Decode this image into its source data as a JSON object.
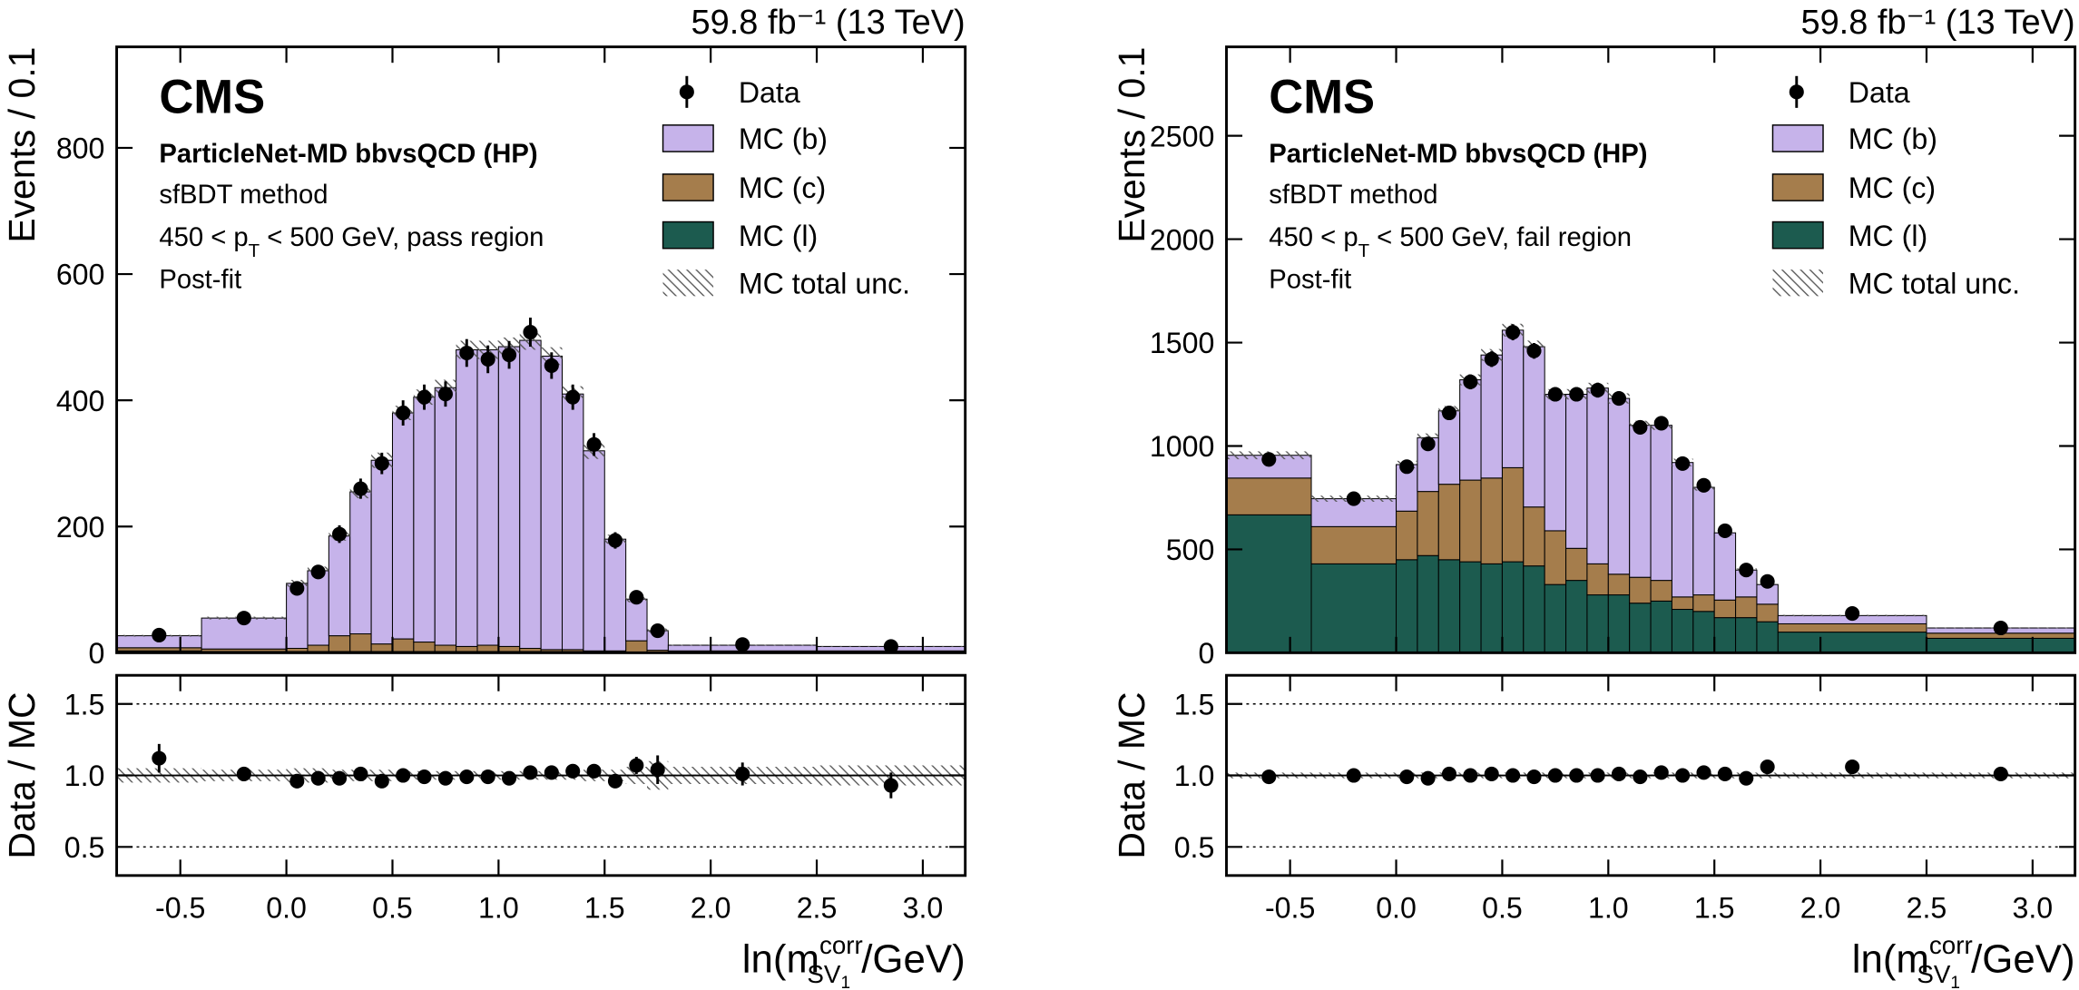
{
  "chart_data": [
    {
      "type": "stacked_histogram",
      "lumi": "59.8 fb⁻¹ (13 TeV)",
      "experiment": "CMS",
      "tagger": "ParticleNet-MD bbvsQCD (HP)",
      "method": "sfBDT method",
      "region": [
        "450 < p",
        "T",
        " < 500 GeV, pass region"
      ],
      "fit": "Post-fit",
      "ylabel": "Events / 0.1",
      "ratio_ylabel": "Data / MC",
      "xlabel": {
        "base": "ln(m",
        "sup": "corr",
        "sub": "SV",
        "subsub": "1",
        "tail": " /GeV)"
      },
      "bins": [
        -0.8,
        -0.4,
        0.0,
        0.1,
        0.2,
        0.3,
        0.4,
        0.5,
        0.6,
        0.7,
        0.8,
        0.9,
        1.0,
        1.1,
        1.2,
        1.3,
        1.4,
        1.5,
        1.6,
        1.7,
        1.8,
        2.5,
        3.2
      ],
      "xlim": [
        -0.8,
        3.2
      ],
      "xticks": [
        -0.5,
        {
          "value": 0,
          "label": "0.0"
        },
        0.5,
        {
          "value": 1,
          "label": "1.0"
        },
        1.5,
        {
          "value": 2,
          "label": "2.0"
        },
        2.5,
        {
          "value": 3,
          "label": "3.0"
        }
      ],
      "ylim": [
        0,
        960
      ],
      "yticks": [
        0,
        200,
        400,
        600,
        800
      ],
      "ratio_ylim": [
        0.3,
        1.7
      ],
      "ratio_yticks": [
        0.5,
        {
          "value": 1,
          "label": "1.0"
        },
        1.5
      ],
      "reference_line": 1,
      "series": [
        {
          "name": "MC (b)",
          "color": "#c6b3ea",
          "values": [
            19,
            49,
            103,
            118,
            158,
            225,
            291,
            358,
            388,
            408,
            470,
            468,
            475,
            488,
            465,
            405,
            317,
            177,
            66,
            31,
            9,
            7
          ]
        },
        {
          "name": "MC (c)",
          "color": "#a57d4c",
          "values": [
            5,
            4,
            5,
            10,
            25,
            28,
            12,
            20,
            15,
            10,
            8,
            10,
            8,
            5,
            3,
            3,
            2,
            2,
            18,
            3,
            2,
            2
          ]
        },
        {
          "name": "MC (l)",
          "color": "#1c5b4f",
          "values": [
            3,
            2,
            2,
            2,
            2,
            2,
            2,
            2,
            2,
            2,
            2,
            2,
            2,
            2,
            2,
            2,
            1,
            1,
            1,
            1,
            1,
            1
          ]
        }
      ],
      "data": {
        "name": "Data",
        "color": "#000000",
        "values": [
          28,
          55,
          102,
          128,
          188,
          260,
          300,
          380,
          405,
          410,
          475,
          465,
          472,
          508,
          455,
          405,
          330,
          178,
          88,
          35,
          13,
          10
        ],
        "errors": [
          5,
          7,
          10,
          11,
          14,
          16,
          17,
          20,
          20,
          20,
          22,
          22,
          22,
          23,
          21,
          20,
          18,
          13,
          9,
          6,
          2,
          2
        ]
      },
      "mc_unc": {
        "name": "MC total unc.",
        "values": [
          0.05,
          0.04,
          0.05,
          0.05,
          0.04,
          0.04,
          0.04,
          0.03,
          0.03,
          0.03,
          0.03,
          0.03,
          0.03,
          0.03,
          0.03,
          0.03,
          0.04,
          0.04,
          0.06,
          0.1,
          0.06,
          0.07
        ]
      },
      "ratio": {
        "values": [
          1.12,
          1.01,
          0.96,
          0.98,
          0.98,
          1.01,
          0.96,
          1.0,
          0.99,
          0.98,
          0.99,
          0.99,
          0.98,
          1.02,
          1.02,
          1.03,
          1.03,
          0.96,
          1.07,
          1.04,
          1.01,
          0.93
        ],
        "errors": [
          0.1,
          0.05,
          0.05,
          0.05,
          0.04,
          0.04,
          0.03,
          0.03,
          0.03,
          0.03,
          0.03,
          0.03,
          0.03,
          0.03,
          0.03,
          0.03,
          0.03,
          0.04,
          0.06,
          0.1,
          0.08,
          0.09
        ]
      }
    },
    {
      "type": "stacked_histogram",
      "lumi": "59.8 fb⁻¹ (13 TeV)",
      "experiment": "CMS",
      "tagger": "ParticleNet-MD bbvsQCD (HP)",
      "method": "sfBDT method",
      "region": [
        "450 < p",
        "T",
        " < 500 GeV, fail region"
      ],
      "fit": "Post-fit",
      "ylabel": "Events / 0.1",
      "ratio_ylabel": "Data / MC",
      "xlabel": {
        "base": "ln(m",
        "sup": "corr",
        "sub": "SV",
        "subsub": "1",
        "tail": " /GeV)"
      },
      "bins": [
        -0.8,
        -0.4,
        0.0,
        0.1,
        0.2,
        0.3,
        0.4,
        0.5,
        0.6,
        0.7,
        0.8,
        0.9,
        1.0,
        1.1,
        1.2,
        1.3,
        1.4,
        1.5,
        1.6,
        1.7,
        1.8,
        2.5,
        3.2
      ],
      "xlim": [
        -0.8,
        3.2
      ],
      "xticks": [
        -0.5,
        {
          "value": 0,
          "label": "0.0"
        },
        0.5,
        {
          "value": 1,
          "label": "1.0"
        },
        1.5,
        {
          "value": 2,
          "label": "2.0"
        },
        2.5,
        {
          "value": 3,
          "label": "3.0"
        }
      ],
      "ylim": [
        0,
        2930
      ],
      "yticks": [
        0,
        500,
        1000,
        1500,
        2000,
        2500
      ],
      "ratio_ylim": [
        0.3,
        1.7
      ],
      "ratio_yticks": [
        0.5,
        {
          "value": 1,
          "label": "1.0"
        },
        1.5
      ],
      "reference_line": 1,
      "series": [
        {
          "name": "MC (b)",
          "color": "#c6b3ea",
          "values": [
            110,
            135,
            225,
            260,
            355,
            485,
            595,
            665,
            775,
            660,
            745,
            850,
            850,
            735,
            750,
            650,
            520,
            325,
            130,
            95,
            40,
            25
          ]
        },
        {
          "name": "MC (c)",
          "color": "#a57d4c",
          "values": [
            178,
            180,
            235,
            310,
            365,
            395,
            415,
            455,
            285,
            260,
            155,
            150,
            100,
            125,
            100,
            60,
            80,
            85,
            100,
            85,
            40,
            25
          ]
        },
        {
          "name": "MC (l)",
          "color": "#1c5b4f",
          "values": [
            667,
            430,
            450,
            470,
            450,
            440,
            430,
            440,
            420,
            330,
            350,
            280,
            280,
            240,
            250,
            210,
            200,
            170,
            170,
            150,
            100,
            70
          ]
        }
      ],
      "data": {
        "name": "Data",
        "color": "#000000",
        "values": [
          935,
          745,
          900,
          1010,
          1160,
          1310,
          1420,
          1550,
          1460,
          1250,
          1250,
          1270,
          1230,
          1090,
          1110,
          915,
          810,
          590,
          400,
          345,
          190,
          120
        ],
        "errors": [
          22,
          12,
          30,
          32,
          34,
          36,
          38,
          39,
          38,
          35,
          35,
          36,
          35,
          33,
          33,
          30,
          28,
          24,
          20,
          18,
          5,
          4
        ]
      },
      "mc_unc": {
        "name": "MC total unc.",
        "values": [
          0.02,
          0.02,
          0.02,
          0.02,
          0.02,
          0.02,
          0.02,
          0.02,
          0.02,
          0.02,
          0.02,
          0.02,
          0.02,
          0.02,
          0.02,
          0.02,
          0.02,
          0.02,
          0.02,
          0.02,
          0.02,
          0.02
        ]
      },
      "ratio": {
        "values": [
          0.99,
          1.0,
          0.99,
          0.98,
          1.01,
          1.0,
          1.01,
          1.0,
          0.99,
          1.0,
          1.0,
          1.0,
          1.01,
          0.99,
          1.02,
          1.0,
          1.02,
          1.01,
          0.98,
          1.06,
          1.06,
          1.01
        ],
        "errors": [
          0.02,
          0.02,
          0.02,
          0.02,
          0.02,
          0.02,
          0.02,
          0.02,
          0.02,
          0.02,
          0.02,
          0.02,
          0.02,
          0.02,
          0.02,
          0.02,
          0.02,
          0.02,
          0.02,
          0.03,
          0.02,
          0.02
        ]
      }
    }
  ]
}
